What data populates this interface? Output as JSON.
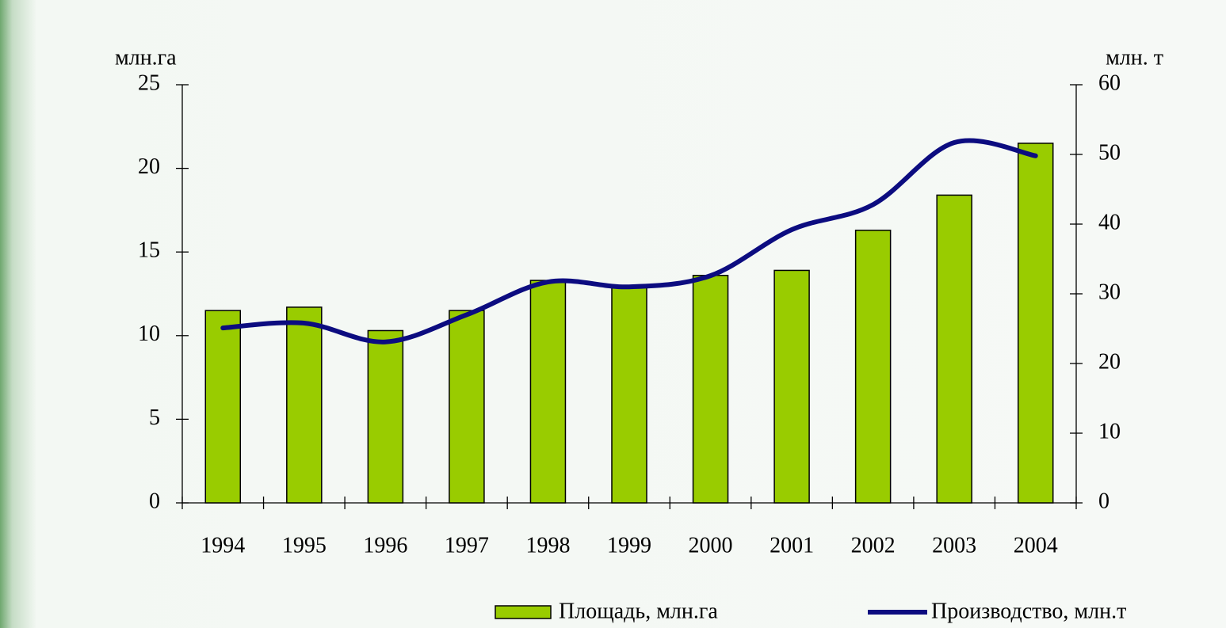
{
  "chart_data": {
    "type": "bar_line",
    "y_label": "млн.га",
    "y2_label": "млн. т",
    "categories": [
      "1994",
      "1995",
      "1996",
      "1997",
      "1998",
      "1999",
      "2000",
      "2001",
      "2002",
      "2003",
      "2004"
    ],
    "series": [
      {
        "name": "Площадь, млн.га",
        "color": "#99cc00",
        "type": "bar",
        "values": [
          11.5,
          11.7,
          10.3,
          11.5,
          13.3,
          12.9,
          13.6,
          13.9,
          16.3,
          18.4,
          21.5
        ]
      },
      {
        "name": "Производство, млн.т",
        "color": "#0c0c80",
        "type": "line",
        "axis": "y2",
        "values": [
          25.1,
          25.8,
          23.1,
          27.0,
          31.7,
          31.0,
          32.6,
          39.2,
          42.8,
          51.7,
          49.8
        ]
      }
    ],
    "ylim": [
      0,
      25
    ],
    "yticks": [
      0,
      5,
      10,
      15,
      20,
      25
    ],
    "y2lim": [
      0,
      60
    ],
    "y2ticks": [
      0,
      10,
      20,
      30,
      40,
      50,
      60
    ],
    "smooth": true
  }
}
